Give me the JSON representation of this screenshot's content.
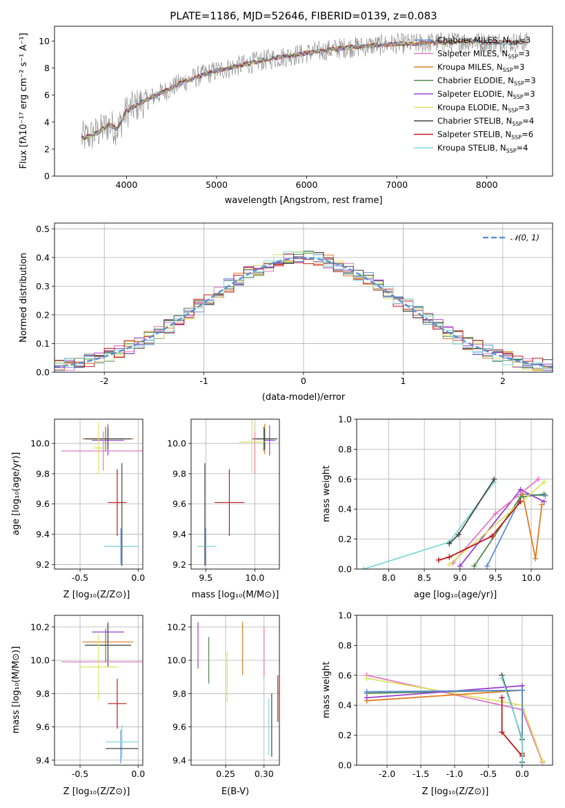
{
  "figure": {
    "title": "PLATE=1186, MJD=52646, FIBERID=0139, z=0.083"
  },
  "colors": {
    "spectrum_data": "#808080",
    "axis": "#000000",
    "grid": "#b0b0b0",
    "normal_curve": "#5b8fd6"
  },
  "chart_data": [
    {
      "id": "spectrum",
      "type": "line",
      "xlabel": "wavelength [Angstrom, rest frame]",
      "ylabel": "Flux [fλ10⁻¹⁷ erg cm⁻² s⁻¹ A⁻¹]",
      "xlim": [
        3200,
        8730
      ],
      "ylim": [
        0,
        11.1
      ],
      "xticks": [
        4000,
        5000,
        6000,
        7000,
        8000
      ],
      "yticks": [
        0,
        2,
        4,
        6,
        8,
        10
      ],
      "grid": false,
      "legend_position": "right",
      "data_trend": {
        "wavelength": [
          3500,
          3600,
          3700,
          3800,
          3900,
          4000,
          4200,
          4400,
          4600,
          4800,
          5000,
          5200,
          5400,
          5600,
          5800,
          6000,
          6200,
          6400,
          6600,
          6800,
          7000,
          7200,
          7400,
          7600,
          7800,
          8000,
          8200,
          8400
        ],
        "flux": [
          2.8,
          3.0,
          3.3,
          3.8,
          3.5,
          4.8,
          5.6,
          6.2,
          6.9,
          7.4,
          7.8,
          8.1,
          8.4,
          8.7,
          8.9,
          9.1,
          9.3,
          9.5,
          9.6,
          9.7,
          9.8,
          9.8,
          9.9,
          9.9,
          10.0,
          9.9,
          9.9,
          9.9
        ]
      },
      "legend": [
        {
          "model": "Chabrier MILES",
          "nssp": "3",
          "color": "#5b8fd6"
        },
        {
          "model": "Salpeter MILES",
          "nssp": "3",
          "color": "#e377c2"
        },
        {
          "model": "Kroupa MILES",
          "nssp": "3",
          "color": "#e07a20"
        },
        {
          "model": "Chabrier ELODIE",
          "nssp": "3",
          "color": "#4d8a4d"
        },
        {
          "model": "Salpeter ELODIE",
          "nssp": "3",
          "color": "#9b3fd0"
        },
        {
          "model": "Kroupa ELODIE",
          "nssp": "3",
          "color": "#dde35c"
        },
        {
          "model": "Chabrier STELIB",
          "nssp": "4",
          "color": "#444444"
        },
        {
          "model": "Salpeter STELIB",
          "nssp": "6",
          "color": "#c01818"
        },
        {
          "model": "Kroupa STELIB",
          "nssp": "4",
          "color": "#7fd8d8"
        }
      ]
    },
    {
      "id": "residual_hist",
      "type": "line",
      "xlabel": "(data-model)/error",
      "ylabel": "Normed distribution",
      "xlim": [
        -2.5,
        2.5
      ],
      "ylim": [
        0,
        0.52
      ],
      "xticks": [
        -2,
        -1,
        0,
        1,
        2
      ],
      "yticks": [
        0.0,
        0.1,
        0.2,
        0.3,
        0.4,
        0.5
      ],
      "grid": true,
      "legend_position": "top-right",
      "curve_label": "𝒩(0, 1)",
      "hist_bin_width": 0.1,
      "hist_bins_start": -2.5
    },
    {
      "id": "age_vs_Z",
      "type": "scatter",
      "xlabel": "Z [log₁₀(Z/Z⊙)]",
      "ylabel": "age  [log₁₀(age/yr)]",
      "xlim": [
        -0.72,
        0.04
      ],
      "ylim": [
        9.17,
        10.16
      ],
      "xticks": [
        -0.5,
        0.0
      ],
      "yticks": [
        9.2,
        9.4,
        9.6,
        9.8,
        10.0
      ],
      "grid": true,
      "points": [
        {
          "x": -0.26,
          "y": 10.03,
          "xerr": 0.22,
          "yerr": 0.1,
          "color": "#e07a20"
        },
        {
          "x": -0.28,
          "y": 10.03,
          "xerr": 0.17,
          "yerr": 0.08,
          "color": "#4d8a4d"
        },
        {
          "x": -0.26,
          "y": 10.02,
          "xerr": 0.14,
          "yerr": 0.1,
          "color": "#9b3fd0"
        },
        {
          "x": -0.26,
          "y": 10.03,
          "xerr": 0.2,
          "yerr": 0.07,
          "color": "#444444"
        },
        {
          "x": -0.3,
          "y": 9.95,
          "xerr": 0.36,
          "yerr": 0.13,
          "color": "#e377c2"
        },
        {
          "x": -0.34,
          "y": 9.97,
          "xerr": 0.05,
          "yerr": 0.17,
          "color": "#dde35c"
        },
        {
          "x": -0.18,
          "y": 9.61,
          "xerr": 0.08,
          "yerr": 0.22,
          "color": "#c01818"
        },
        {
          "x": -0.15,
          "y": 9.32,
          "xerr": 0.14,
          "yerr": 0.12,
          "color": "#5b8fd6"
        },
        {
          "x": -0.14,
          "y": 9.32,
          "xerr": 0.14,
          "yerr": 0.1,
          "color": "#7fd8d8"
        },
        {
          "x": -0.14,
          "y": 9.53,
          "xerr": 0.0,
          "yerr": 0.34,
          "color": "#444444"
        }
      ]
    },
    {
      "id": "age_vs_mass",
      "type": "scatter",
      "xlabel": "mass [log₁₀(M/M⊙)]",
      "ylabel": "",
      "xlim": [
        9.35,
        10.25
      ],
      "ylim": [
        9.17,
        10.16
      ],
      "xticks": [
        9.5,
        10.0
      ],
      "yticks": [
        9.2,
        9.4,
        9.6,
        9.8,
        10.0
      ],
      "grid": true,
      "points": [
        {
          "x": 10.1,
          "y": 10.03,
          "xerr": 0.09,
          "yerr": 0.1,
          "color": "#e07a20"
        },
        {
          "x": 10.09,
          "y": 10.03,
          "xerr": 0.1,
          "yerr": 0.08,
          "color": "#4d8a4d"
        },
        {
          "x": 10.15,
          "y": 10.02,
          "xerr": 0.06,
          "yerr": 0.1,
          "color": "#9b3fd0"
        },
        {
          "x": 10.1,
          "y": 10.03,
          "xerr": 0.13,
          "yerr": 0.07,
          "color": "#444444"
        },
        {
          "x": 10.0,
          "y": 9.94,
          "xerr": 0.0,
          "yerr": 0.14,
          "color": "#e377c2"
        },
        {
          "x": 9.97,
          "y": 10.01,
          "xerr": 0.13,
          "yerr": 0.2,
          "color": "#dde35c"
        },
        {
          "x": 9.74,
          "y": 9.61,
          "xerr": 0.15,
          "yerr": 0.22,
          "color": "#c01818"
        },
        {
          "x": 9.5,
          "y": 9.32,
          "xerr": 0.0,
          "yerr": 0.12,
          "color": "#5b8fd6"
        },
        {
          "x": 9.51,
          "y": 9.32,
          "xerr": 0.1,
          "yerr": 0.0,
          "color": "#7fd8d8"
        },
        {
          "x": 9.49,
          "y": 9.53,
          "xerr": 0.0,
          "yerr": 0.34,
          "color": "#444444"
        }
      ]
    },
    {
      "id": "mass_weight_vs_age",
      "type": "line",
      "xlabel": "age  [log₁₀(age/yr)]",
      "ylabel": "mass weight",
      "xlim": [
        7.55,
        10.3
      ],
      "ylim": [
        0,
        1.0
      ],
      "xticks": [
        8.0,
        8.5,
        9.0,
        9.5,
        10.0
      ],
      "yticks": [
        0.0,
        0.2,
        0.4,
        0.6,
        0.8,
        1.0
      ],
      "grid": true,
      "series": [
        {
          "color": "#7fd8d8",
          "x": [
            7.65,
            8.85,
            9.48
          ],
          "y": [
            0.0,
            0.18,
            0.58
          ]
        },
        {
          "color": "#444444",
          "x": [
            8.85,
            8.98,
            9.48
          ],
          "y": [
            0.17,
            0.23,
            0.6
          ]
        },
        {
          "color": "#5b8fd6",
          "x": [
            9.38,
            9.88,
            10.2
          ],
          "y": [
            0.02,
            0.5,
            0.49
          ]
        },
        {
          "color": "#e07a20",
          "x": [
            9.88,
            10.06,
            10.15
          ],
          "y": [
            0.5,
            0.07,
            0.43
          ]
        },
        {
          "color": "#4d8a4d",
          "x": [
            9.2,
            9.85,
            10.18
          ],
          "y": [
            0.02,
            0.48,
            0.5
          ]
        },
        {
          "color": "#9b3fd0",
          "x": [
            9.0,
            9.85,
            10.18
          ],
          "y": [
            0.02,
            0.53,
            0.45
          ]
        },
        {
          "color": "#e377c2",
          "x": [
            8.9,
            9.5,
            10.1
          ],
          "y": [
            0.04,
            0.37,
            0.6
          ]
        },
        {
          "color": "#dde35c",
          "x": [
            8.85,
            9.75,
            10.18
          ],
          "y": [
            0.03,
            0.4,
            0.58
          ]
        },
        {
          "color": "#c01818",
          "x": [
            8.7,
            8.85,
            9.45,
            9.85
          ],
          "y": [
            0.06,
            0.08,
            0.22,
            0.45
          ]
        }
      ]
    },
    {
      "id": "mass_vs_Z",
      "type": "scatter",
      "xlabel": "Z [log₁₀(Z/Z⊙)]",
      "ylabel": "mass [log₁₀(M/M⊙)]",
      "xlim": [
        -0.72,
        0.04
      ],
      "ylim": [
        9.37,
        10.27
      ],
      "xticks": [
        -0.5,
        0.0
      ],
      "yticks": [
        9.4,
        9.6,
        9.8,
        10.0,
        10.2
      ],
      "grid": true,
      "points": [
        {
          "x": -0.26,
          "y": 10.11,
          "xerr": 0.22,
          "yerr": 0.11,
          "color": "#e07a20"
        },
        {
          "x": -0.28,
          "y": 10.09,
          "xerr": 0.17,
          "yerr": 0.1,
          "color": "#4d8a4d"
        },
        {
          "x": -0.26,
          "y": 10.17,
          "xerr": 0.14,
          "yerr": 0.06,
          "color": "#9b3fd0"
        },
        {
          "x": -0.26,
          "y": 10.09,
          "xerr": 0.2,
          "yerr": 0.13,
          "color": "#444444"
        },
        {
          "x": -0.3,
          "y": 9.99,
          "xerr": 0.36,
          "yerr": 0.0,
          "color": "#e377c2"
        },
        {
          "x": -0.34,
          "y": 9.96,
          "xerr": 0.17,
          "yerr": 0.2,
          "color": "#dde35c"
        },
        {
          "x": -0.18,
          "y": 9.74,
          "xerr": 0.08,
          "yerr": 0.15,
          "color": "#c01818"
        },
        {
          "x": -0.15,
          "y": 9.48,
          "xerr": 0.0,
          "yerr": 0.1,
          "color": "#5b8fd6"
        },
        {
          "x": -0.14,
          "y": 9.51,
          "xerr": 0.14,
          "yerr": 0.1,
          "color": "#7fd8d8"
        },
        {
          "x": -0.14,
          "y": 9.47,
          "xerr": 0.14,
          "yerr": 0.0,
          "color": "#444444"
        }
      ]
    },
    {
      "id": "mass_vs_ebv",
      "type": "scatter",
      "xlabel": "E(B-V)",
      "ylabel": "",
      "xlim": [
        0.205,
        0.32
      ],
      "ylim": [
        9.37,
        10.27
      ],
      "xticks": [
        0.25,
        0.3
      ],
      "yticks": [
        9.4,
        9.6,
        9.8,
        10.0,
        10.2
      ],
      "grid": true,
      "points": [
        {
          "x": 0.214,
          "y": 10.09,
          "xerr": 0.0,
          "yerr": 0.14,
          "color": "#9b3fd0"
        },
        {
          "x": 0.228,
          "y": 10.0,
          "xerr": 0.0,
          "yerr": 0.14,
          "color": "#4d8a4d"
        },
        {
          "x": 0.252,
          "y": 9.9,
          "xerr": 0.0,
          "yerr": 0.15,
          "color": "#dde35c"
        },
        {
          "x": 0.272,
          "y": 10.07,
          "xerr": 0.0,
          "yerr": 0.16,
          "color": "#e07a20"
        },
        {
          "x": 0.3,
          "y": 10.05,
          "xerr": 0.0,
          "yerr": 0.15,
          "color": "#e377c2"
        },
        {
          "x": 0.306,
          "y": 9.6,
          "xerr": 0.0,
          "yerr": 0.17,
          "color": "#7fd8d8"
        },
        {
          "x": 0.31,
          "y": 9.61,
          "xerr": 0.0,
          "yerr": 0.19,
          "color": "#444444"
        },
        {
          "x": 0.318,
          "y": 9.77,
          "xerr": 0.0,
          "yerr": 0.14,
          "color": "#c01818"
        }
      ]
    },
    {
      "id": "mass_weight_vs_Z",
      "type": "line",
      "xlabel": "Z [log₁₀(Z/Z⊙)]",
      "ylabel": "mass weight",
      "xlim": [
        -2.45,
        0.45
      ],
      "ylim": [
        0,
        1.0
      ],
      "xticks": [
        -2.0,
        -1.5,
        -1.0,
        -0.5,
        0.0
      ],
      "yticks": [
        0.0,
        0.2,
        0.4,
        0.6,
        0.8,
        1.0
      ],
      "grid": true,
      "series": [
        {
          "color": "#e377c2",
          "x": [
            -2.3,
            0.0,
            0.3
          ],
          "y": [
            0.6,
            0.37,
            0.02
          ]
        },
        {
          "color": "#dde35c",
          "x": [
            -2.3,
            0.0,
            0.3
          ],
          "y": [
            0.58,
            0.4,
            0.03
          ]
        },
        {
          "color": "#e07a20",
          "x": [
            -2.3,
            0.0,
            0.0
          ],
          "y": [
            0.43,
            0.5,
            0.07
          ]
        },
        {
          "color": "#4d8a4d",
          "x": [
            -2.3,
            0.0,
            0.0
          ],
          "y": [
            0.48,
            0.5,
            0.02
          ]
        },
        {
          "color": "#9b3fd0",
          "x": [
            -2.3,
            0.0,
            0.0
          ],
          "y": [
            0.45,
            0.53,
            0.02
          ]
        },
        {
          "color": "#5b8fd6",
          "x": [
            -2.3,
            0.0,
            0.0
          ],
          "y": [
            0.49,
            0.5,
            0.02
          ]
        },
        {
          "color": "#c01818",
          "x": [
            -0.3,
            -0.3,
            0.0,
            0.0
          ],
          "y": [
            0.45,
            0.22,
            0.06,
            0.08
          ]
        },
        {
          "color": "#444444",
          "x": [
            -0.3,
            0.0,
            0.0
          ],
          "y": [
            0.6,
            0.17,
            0.02
          ]
        },
        {
          "color": "#7fd8d8",
          "x": [
            -0.3,
            0.0,
            0.0
          ],
          "y": [
            0.58,
            0.18,
            0.0
          ]
        }
      ]
    }
  ]
}
